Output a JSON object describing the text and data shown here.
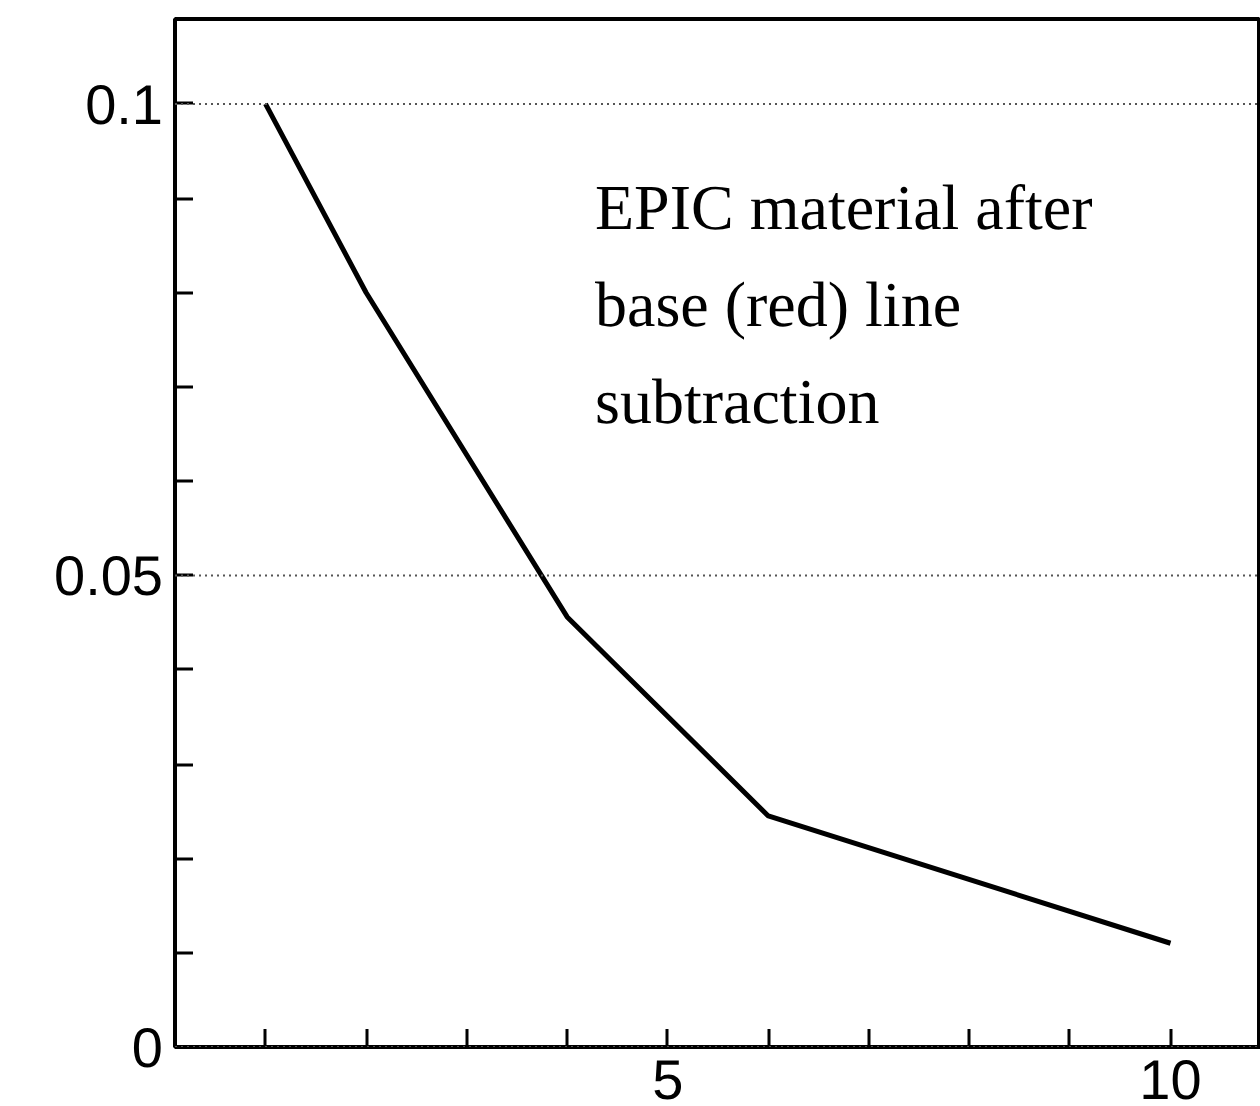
{
  "chart_data": {
    "type": "line",
    "x": [
      1,
      2,
      4,
      6,
      10
    ],
    "series": [
      {
        "color": "#000000",
        "values": [
          0.1,
          0.08,
          0.0456,
          0.0245,
          0.011
        ]
      }
    ],
    "xlim": [
      0.1,
      10.9
    ],
    "ylim": [
      0,
      0.109
    ],
    "xticks": [
      {
        "value": 1,
        "label": null
      },
      {
        "value": 2,
        "label": null
      },
      {
        "value": 3,
        "label": null
      },
      {
        "value": 4,
        "label": null
      },
      5,
      {
        "value": 6,
        "label": null
      },
      {
        "value": 7,
        "label": null
      },
      {
        "value": 8,
        "label": null
      },
      {
        "value": 9,
        "label": null
      },
      10
    ],
    "yticks": [
      0,
      {
        "value": 0.01,
        "label": null
      },
      {
        "value": 0.02,
        "label": null
      },
      {
        "value": 0.03,
        "label": null
      },
      {
        "value": 0.04,
        "label": null
      },
      0.05,
      {
        "value": 0.06,
        "label": null
      },
      {
        "value": 0.07,
        "label": null
      },
      {
        "value": 0.08,
        "label": null
      },
      {
        "value": 0.09,
        "label": null
      },
      0.1
    ],
    "grid": "y",
    "line_style": "solid",
    "marker": "none",
    "annotations": [
      "EPIC material after\nbase (red) line\nsubtraction"
    ]
  }
}
